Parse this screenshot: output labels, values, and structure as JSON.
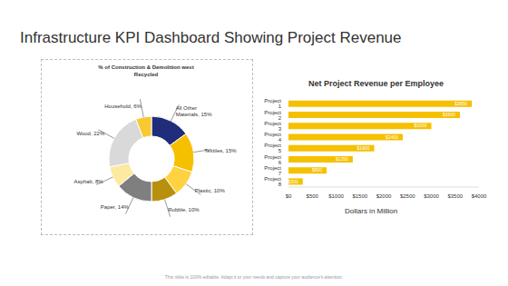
{
  "title": "Infrastructure KPI Dashboard Showing Project Revenue",
  "footer": "This slide is 100% editable. Adapt it to your needs and capture your audience's attention.",
  "chart_data": [
    {
      "type": "pie",
      "title": "% of Construction & Demolition west Recycled",
      "categories": [
        "All Other Materials",
        "Textiles",
        "Plastic",
        "Rubble",
        "Paper",
        "Asphalt",
        "Wood",
        "Household"
      ],
      "values": [
        15,
        15,
        10,
        10,
        14,
        8,
        22,
        6
      ],
      "value_labels": [
        "All Other Materials, 15%",
        "Textiles, 15%",
        "Plastic, 10%",
        "Rubble, 10%",
        "Paper, 14%",
        "Asphalt, 8%",
        "Wood, 22%",
        "Household, 6%"
      ],
      "colors": [
        "#1f2d7b",
        "#f5c000",
        "#ffd23f",
        "#b8900e",
        "#7f7f7f",
        "#fde9a0",
        "#d9d9d9",
        "#f9c932"
      ],
      "data_labels": true
    },
    {
      "type": "bar",
      "orientation": "horizontal",
      "title": "Net Project Revenue per Employee",
      "categories": [
        "Project 1",
        "Project 2",
        "Project 3",
        "Project 4",
        "Project 5",
        "Project 6",
        "Project 7",
        "Project 8"
      ],
      "values": [
        3850,
        3600,
        3000,
        2400,
        1800,
        1350,
        800,
        300
      ],
      "value_labels": [
        "$3850",
        "$3600",
        "$3000",
        "$2400",
        "$1800",
        "$1350",
        "$800",
        "$300"
      ],
      "data_labels": true,
      "color": "#f5c000",
      "xlabel": "Dollars in Million",
      "xlim": [
        0,
        4000
      ],
      "xticks": [
        {
          "value": 0,
          "label": "$0"
        },
        {
          "value": 500,
          "label": "$500"
        },
        {
          "value": 1000,
          "label": "$1000"
        },
        {
          "value": 1500,
          "label": "$1500"
        },
        {
          "value": 2000,
          "label": "$2000"
        },
        {
          "value": 2500,
          "label": "$2500"
        },
        {
          "value": 3000,
          "label": "$3000"
        },
        {
          "value": 3500,
          "label": "$3500"
        },
        {
          "value": 4000,
          "label": "$4000"
        }
      ],
      "grid": false
    }
  ]
}
